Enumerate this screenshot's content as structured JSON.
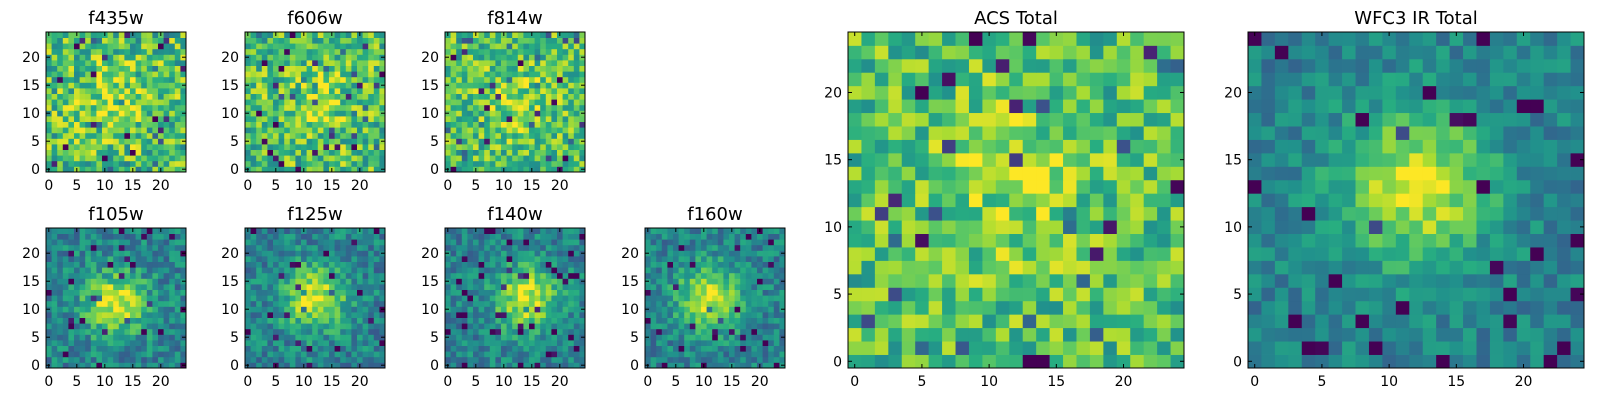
{
  "chart_data": [
    {
      "type": "heatmap",
      "title": "f435w",
      "grid_size": [
        25,
        25
      ],
      "colormap": "viridis",
      "xlim": [
        0,
        24
      ],
      "ylim": [
        0,
        24
      ],
      "xticks": [
        "0",
        "5",
        "10",
        "15",
        "20"
      ],
      "yticks": [
        "0",
        "5",
        "10",
        "15",
        "20"
      ],
      "pattern": "noise",
      "peak": [
        12,
        12
      ],
      "noise_level": 0.9,
      "seed": 11
    },
    {
      "type": "heatmap",
      "title": "f606w",
      "grid_size": [
        25,
        25
      ],
      "colormap": "viridis",
      "xlim": [
        0,
        24
      ],
      "ylim": [
        0,
        24
      ],
      "xticks": [
        "0",
        "5",
        "10",
        "15",
        "20"
      ],
      "yticks": [
        "0",
        "5",
        "10",
        "15",
        "20"
      ],
      "pattern": "noise",
      "peak": [
        12,
        12
      ],
      "noise_level": 0.85,
      "seed": 23
    },
    {
      "type": "heatmap",
      "title": "f814w",
      "grid_size": [
        25,
        25
      ],
      "colormap": "viridis",
      "xlim": [
        0,
        24
      ],
      "ylim": [
        0,
        24
      ],
      "xticks": [
        "0",
        "5",
        "10",
        "15",
        "20"
      ],
      "yticks": [
        "0",
        "5",
        "10",
        "15",
        "20"
      ],
      "pattern": "noise",
      "peak": [
        12,
        12
      ],
      "noise_level": 0.8,
      "seed": 37
    },
    {
      "type": "heatmap",
      "title": "f105w",
      "grid_size": [
        25,
        25
      ],
      "colormap": "viridis",
      "xlim": [
        0,
        24
      ],
      "ylim": [
        0,
        24
      ],
      "xticks": [
        "0",
        "5",
        "10",
        "15",
        "20"
      ],
      "yticks": [
        "0",
        "5",
        "10",
        "15",
        "20"
      ],
      "pattern": "central_source",
      "peak": [
        12,
        11
      ],
      "noise_level": 0.6,
      "seed": 41
    },
    {
      "type": "heatmap",
      "title": "f125w",
      "grid_size": [
        25,
        25
      ],
      "colormap": "viridis",
      "xlim": [
        0,
        24
      ],
      "ylim": [
        0,
        24
      ],
      "xticks": [
        "0",
        "5",
        "10",
        "15",
        "20"
      ],
      "yticks": [
        "0",
        "5",
        "10",
        "15",
        "20"
      ],
      "pattern": "central_source",
      "peak": [
        12,
        12
      ],
      "noise_level": 0.6,
      "seed": 53
    },
    {
      "type": "heatmap",
      "title": "f140w",
      "grid_size": [
        25,
        25
      ],
      "colormap": "viridis",
      "xlim": [
        0,
        24
      ],
      "ylim": [
        0,
        24
      ],
      "xticks": [
        "0",
        "5",
        "10",
        "15",
        "20"
      ],
      "yticks": [
        "0",
        "5",
        "10",
        "15",
        "20"
      ],
      "pattern": "central_source",
      "peak": [
        14,
        12
      ],
      "noise_level": 0.55,
      "seed": 67
    },
    {
      "type": "heatmap",
      "title": "f160w",
      "grid_size": [
        25,
        25
      ],
      "colormap": "viridis",
      "xlim": [
        0,
        24
      ],
      "ylim": [
        0,
        24
      ],
      "xticks": [
        "0",
        "5",
        "10",
        "15",
        "20"
      ],
      "yticks": [
        "0",
        "5",
        "10",
        "15",
        "20"
      ],
      "pattern": "central_source",
      "peak": [
        11,
        12
      ],
      "noise_level": 0.55,
      "seed": 79
    },
    {
      "type": "heatmap",
      "title": "ACS Total",
      "grid_size": [
        25,
        25
      ],
      "colormap": "viridis",
      "xlim": [
        0,
        24
      ],
      "ylim": [
        0,
        24
      ],
      "xticks": [
        "0",
        "5",
        "10",
        "15",
        "20"
      ],
      "yticks": [
        "0",
        "5",
        "10",
        "15",
        "20"
      ],
      "pattern": "noise",
      "peak": [
        12,
        13
      ],
      "noise_level": 0.75,
      "seed": 97
    },
    {
      "type": "heatmap",
      "title": "WFC3 IR Total",
      "grid_size": [
        25,
        25
      ],
      "colormap": "viridis",
      "xlim": [
        0,
        24
      ],
      "ylim": [
        0,
        24
      ],
      "xticks": [
        "0",
        "5",
        "10",
        "15",
        "20"
      ],
      "yticks": [
        "0",
        "5",
        "10",
        "15",
        "20"
      ],
      "pattern": "central_source",
      "peak": [
        12,
        13
      ],
      "noise_level": 0.45,
      "seed": 131
    }
  ]
}
